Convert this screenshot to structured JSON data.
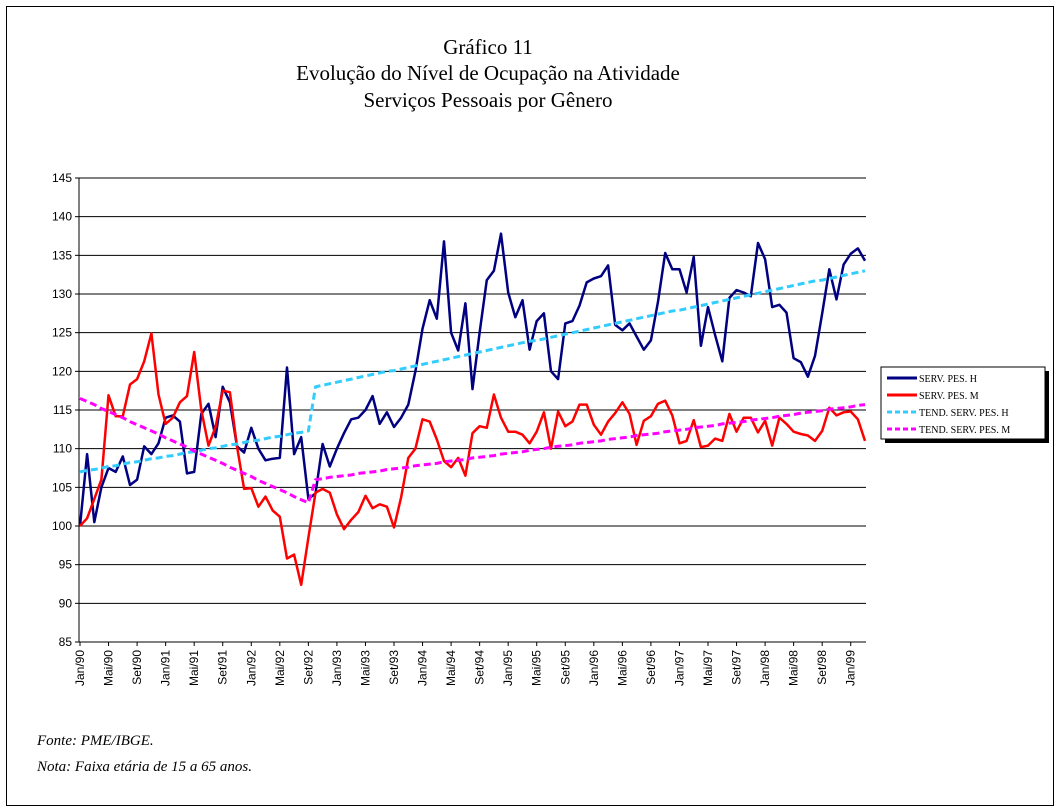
{
  "chart_data": {
    "type": "line",
    "title": [
      "Gráfico 11",
      "Evolução do Nível de Ocupação na Atividade",
      "Serviços Pessoais por Gênero"
    ],
    "notes": [
      "Fonte: PME/IBGE.",
      "Nota: Faixa etária de 15 a 65 anos."
    ],
    "categories": [
      "Jan/90",
      null,
      null,
      null,
      "Mai/90",
      null,
      null,
      null,
      "Set/90",
      null,
      null,
      null,
      "Jan/91",
      null,
      null,
      null,
      "Mai/91",
      null,
      null,
      null,
      "Set/91",
      null,
      null,
      null,
      "Jan/92",
      null,
      null,
      null,
      "Mai/92",
      null,
      null,
      null,
      "Set/92",
      null,
      null,
      null,
      "Jan/93",
      null,
      null,
      null,
      "Mai/93",
      null,
      null,
      null,
      "Set/93",
      null,
      null,
      null,
      "Jan/94",
      null,
      null,
      null,
      "Mai/94",
      null,
      null,
      null,
      "Set/94",
      null,
      null,
      null,
      "Jan/95",
      null,
      null,
      null,
      "Mai/95",
      null,
      null,
      null,
      "Set/95",
      null,
      null,
      null,
      "Jan/96",
      null,
      null,
      null,
      "Mai/96",
      null,
      null,
      null,
      "Set/96",
      null,
      null,
      null,
      "Jan/97",
      null,
      null,
      null,
      "Mai/97",
      null,
      null,
      null,
      "Set/97",
      null,
      null,
      null,
      "Jan/98",
      null,
      null,
      null,
      "Mai/98",
      null,
      null,
      null,
      "Set/98",
      null,
      null,
      null,
      "Jan/99",
      null,
      null
    ],
    "ylim": [
      85,
      145
    ],
    "yticks": [
      85,
      90,
      95,
      100,
      105,
      110,
      115,
      120,
      125,
      130,
      135,
      140,
      145
    ],
    "grid": true,
    "legend": "right",
    "series": [
      {
        "name": "SERV. PES. H",
        "color": "#000080",
        "dashed": false,
        "values": [
          100,
          109.3,
          100.5,
          105,
          107.5,
          107,
          109,
          105.3,
          106,
          110.3,
          109.3,
          110.7,
          114,
          114.3,
          113.5,
          106.8,
          107,
          114.5,
          115.8,
          111.5,
          118,
          116,
          110.3,
          109.5,
          112.7,
          110,
          108.5,
          108.7,
          108.8,
          120.5,
          109.3,
          111.5,
          103.5,
          104.2,
          110.6,
          107.7,
          110,
          112,
          113.8,
          114,
          115,
          116.8,
          113.2,
          114.7,
          112.8,
          114,
          115.7,
          120,
          125.5,
          129.2,
          126.8,
          136.8,
          125,
          122.7,
          128.8,
          117.7,
          125,
          131.8,
          133,
          137.8,
          130.2,
          127,
          129.2,
          122.8,
          126.5,
          127.5,
          120,
          119,
          126.2,
          126.5,
          128.5,
          131.5,
          132,
          132.3,
          133.7,
          126,
          125.3,
          126.2,
          124.5,
          122.8,
          124,
          129,
          135.3,
          133.2,
          133.2,
          130.2,
          134.8,
          123.3,
          128.3,
          124.7,
          121.3,
          129.5,
          130.5,
          130.2,
          129.7,
          136.6,
          134.5,
          128.3,
          128.6,
          127.6,
          121.7,
          121.2,
          119.3,
          122,
          127.5,
          133.2,
          129.3,
          133.8,
          135.2,
          135.9,
          134.3
        ]
      },
      {
        "name": "SERV. PES. M",
        "color": "#ff0000",
        "dashed": false,
        "values": [
          100,
          101,
          103.5,
          106,
          116.9,
          114.2,
          114.2,
          118.3,
          119,
          121.3,
          124.9,
          117,
          113.2,
          114,
          116,
          116.8,
          122.5,
          115,
          110.4,
          112.8,
          117.5,
          117.3,
          110.3,
          104.8,
          104.9,
          102.5,
          103.8,
          102,
          101.2,
          95.8,
          96.3,
          92.4,
          98.5,
          104.3,
          104.8,
          104.3,
          101.5,
          99.6,
          100.8,
          101.8,
          103.9,
          102.3,
          102.8,
          102.5,
          99.8,
          103.7,
          108.8,
          110,
          113.8,
          113.5,
          111.2,
          108.4,
          107.6,
          108.8,
          106.5,
          112,
          112.9,
          112.7,
          117,
          114,
          112.2,
          112.2,
          111.8,
          110.7,
          112.2,
          114.7,
          110,
          114.8,
          112.9,
          113.5,
          115.7,
          115.7,
          113.1,
          111.8,
          113.5,
          114.6,
          116,
          114.5,
          110.5,
          113.6,
          114.2,
          115.8,
          116.2,
          114.3,
          110.7,
          111,
          113.7,
          110.2,
          110.4,
          111.3,
          111,
          114.5,
          112.2,
          114,
          114,
          112.1,
          113.6,
          110.4,
          114,
          113.2,
          112.2,
          111.9,
          111.7,
          111,
          112.3,
          115.3,
          114.3,
          114.7,
          114.8,
          113.8,
          111
        ]
      },
      {
        "name": "TEND. SERV. PES. H",
        "color": "#33ccff",
        "dashed": true,
        "values": [
          107.0,
          107.2,
          107.3,
          107.5,
          107.7,
          107.8,
          108.0,
          108.2,
          108.3,
          108.5,
          108.7,
          108.8,
          109.0,
          109.1,
          109.3,
          109.5,
          109.6,
          109.8,
          110.0,
          110.1,
          110.3,
          110.5,
          110.6,
          110.8,
          111.0,
          111.1,
          111.3,
          111.5,
          111.6,
          111.8,
          112.0,
          112.1,
          112.3,
          118.0,
          118.2,
          118.4,
          118.6,
          118.8,
          119.0,
          119.2,
          119.4,
          119.6,
          119.8,
          120.0,
          120.1,
          120.3,
          120.5,
          120.7,
          120.9,
          121.1,
          121.3,
          121.5,
          121.7,
          121.9,
          122.1,
          122.3,
          122.5,
          122.7,
          122.9,
          123.1,
          123.3,
          123.5,
          123.7,
          123.9,
          124.0,
          124.2,
          124.4,
          124.6,
          124.8,
          125.0,
          125.2,
          125.4,
          125.6,
          125.8,
          126.0,
          126.2,
          126.4,
          126.6,
          126.8,
          127.0,
          127.2,
          127.4,
          127.6,
          127.8,
          127.9,
          128.1,
          128.3,
          128.5,
          128.7,
          128.9,
          129.1,
          129.3,
          129.5,
          129.7,
          129.9,
          130.1,
          130.3,
          130.5,
          130.7,
          130.9,
          131.1,
          131.3,
          131.5,
          131.7,
          131.8,
          132.0,
          132.2,
          132.4,
          132.6,
          132.8,
          133.0
        ]
      },
      {
        "name": "TEND. SERV. PES. M",
        "color": "#ff00ff",
        "dashed": true,
        "values": [
          116.5,
          116.1,
          115.7,
          115.2,
          114.8,
          114.4,
          114.0,
          113.5,
          113.1,
          112.7,
          112.3,
          111.9,
          111.4,
          111.0,
          110.6,
          110.2,
          109.7,
          109.3,
          108.9,
          108.5,
          108.1,
          107.6,
          107.2,
          106.8,
          106.4,
          105.9,
          105.5,
          105.1,
          104.7,
          104.3,
          103.8,
          103.4,
          103.0,
          106.0,
          106.1,
          106.3,
          106.4,
          106.5,
          106.6,
          106.8,
          106.9,
          107.0,
          107.1,
          107.3,
          107.4,
          107.5,
          107.6,
          107.8,
          107.9,
          108.0,
          108.1,
          108.3,
          108.4,
          108.5,
          108.6,
          108.8,
          108.9,
          109.0,
          109.1,
          109.3,
          109.4,
          109.5,
          109.6,
          109.8,
          109.9,
          110.0,
          110.2,
          110.3,
          110.4,
          110.5,
          110.7,
          110.8,
          110.9,
          111.0,
          111.2,
          111.3,
          111.4,
          111.5,
          111.7,
          111.8,
          111.9,
          112.0,
          112.2,
          112.3,
          112.4,
          112.5,
          112.7,
          112.8,
          112.9,
          113.0,
          113.2,
          113.3,
          113.4,
          113.5,
          113.7,
          113.8,
          113.9,
          114.0,
          114.2,
          114.3,
          114.4,
          114.6,
          114.7,
          114.8,
          114.9,
          115.1,
          115.2,
          115.3,
          115.4,
          115.6,
          115.7
        ]
      }
    ]
  }
}
